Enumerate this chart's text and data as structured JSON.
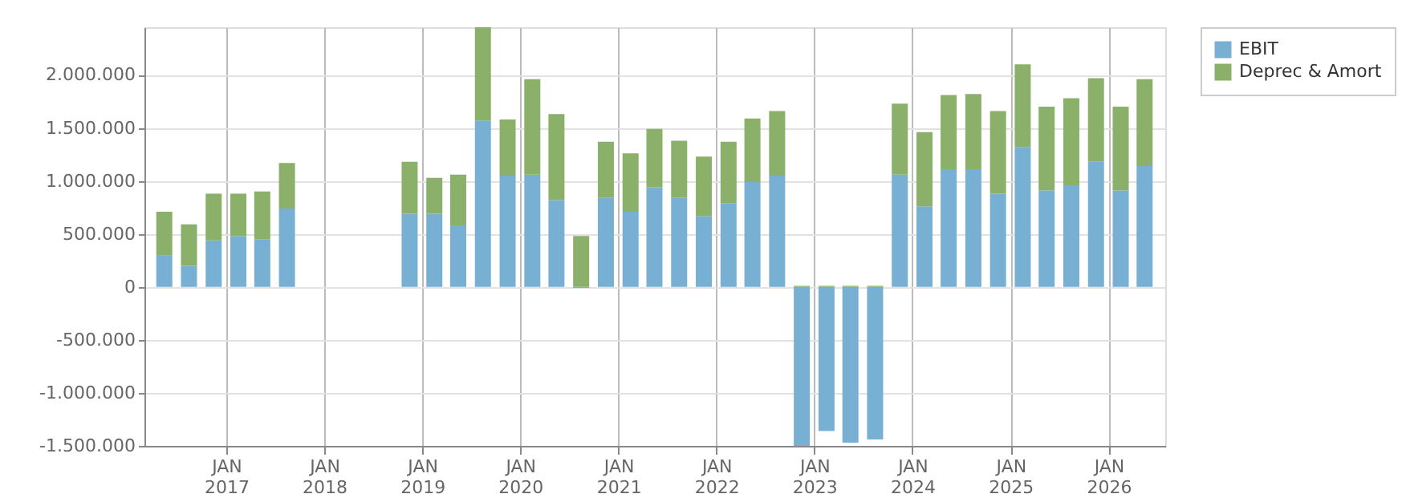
{
  "chart_data": {
    "type": "bar",
    "stacked": true,
    "x": [
      "2016-05-15",
      "2016-08-15",
      "2016-11-15",
      "2017-02-15",
      "2017-05-15",
      "2017-08-15",
      "2017-11-15",
      "2018-02-15",
      "2018-05-15",
      "2018-08-15",
      "2018-11-15",
      "2019-02-15",
      "2019-05-15",
      "2019-08-15",
      "2019-11-15",
      "2020-02-15",
      "2020-05-15",
      "2020-08-15",
      "2020-11-15",
      "2021-02-15",
      "2021-05-15",
      "2021-08-15",
      "2021-11-15",
      "2022-02-15",
      "2022-05-15",
      "2022-08-15",
      "2022-11-15",
      "2023-02-15",
      "2023-05-15",
      "2023-08-15",
      "2023-11-15",
      "2024-02-15",
      "2024-05-15",
      "2024-08-15",
      "2024-11-15",
      "2025-02-15",
      "2025-05-15",
      "2025-08-15",
      "2025-11-15",
      "2026-02-15",
      "2026-05-15"
    ],
    "series": [
      {
        "name": "EBIT",
        "color": "#77b0d2",
        "values": [
          300000,
          200000,
          440000,
          480000,
          450000,
          740000,
          null,
          null,
          null,
          null,
          690000,
          690000,
          580000,
          1570000,
          1050000,
          1060000,
          820000,
          -10000,
          840000,
          710000,
          940000,
          840000,
          670000,
          790000,
          990000,
          1050000,
          -1500000,
          -1360000,
          -1470000,
          -1440000,
          1060000,
          760000,
          1110000,
          1110000,
          880000,
          1320000,
          910000,
          960000,
          1180000,
          910000,
          1140000
        ]
      },
      {
        "name": "Deprec & Amort",
        "color": "#8ab06a",
        "values": [
          410000,
          390000,
          440000,
          400000,
          450000,
          430000,
          null,
          null,
          null,
          null,
          490000,
          340000,
          480000,
          880000,
          530000,
          900000,
          810000,
          480000,
          530000,
          550000,
          550000,
          540000,
          560000,
          580000,
          600000,
          610000,
          10000,
          10000,
          10000,
          10000,
          670000,
          700000,
          700000,
          710000,
          780000,
          780000,
          790000,
          820000,
          790000,
          790000,
          820000
        ]
      }
    ],
    "xlim": [
      "2016-04-01",
      "2026-07-01"
    ],
    "xticks": [
      {
        "value": "2017-01-01",
        "label": "JAN 2017"
      },
      {
        "value": "2018-01-01",
        "label": "JAN 2018"
      },
      {
        "value": "2019-01-01",
        "label": "JAN 2019"
      },
      {
        "value": "2020-01-01",
        "label": "JAN 2020"
      },
      {
        "value": "2021-01-01",
        "label": "JAN 2021"
      },
      {
        "value": "2022-01-01",
        "label": "JAN 2022"
      },
      {
        "value": "2023-01-01",
        "label": "JAN 2023"
      },
      {
        "value": "2024-01-01",
        "label": "JAN 2024"
      },
      {
        "value": "2025-01-01",
        "label": "JAN 2025"
      },
      {
        "value": "2026-01-01",
        "label": "JAN 2026"
      }
    ],
    "ylim": [
      -1500000,
      2450000
    ],
    "yticks": [
      {
        "value": -1500000,
        "label": "-1.500.000"
      },
      {
        "value": -1000000,
        "label": "-1.000.000"
      },
      {
        "value": -500000,
        "label": "-500.000"
      },
      0,
      {
        "value": 500000,
        "label": "500.000"
      },
      {
        "value": 1000000,
        "label": "1.000.000"
      },
      {
        "value": 1500000,
        "label": "1.500.000"
      },
      {
        "value": 2000000,
        "label": "2.000.000"
      }
    ],
    "grid": true,
    "legend": "top right"
  }
}
